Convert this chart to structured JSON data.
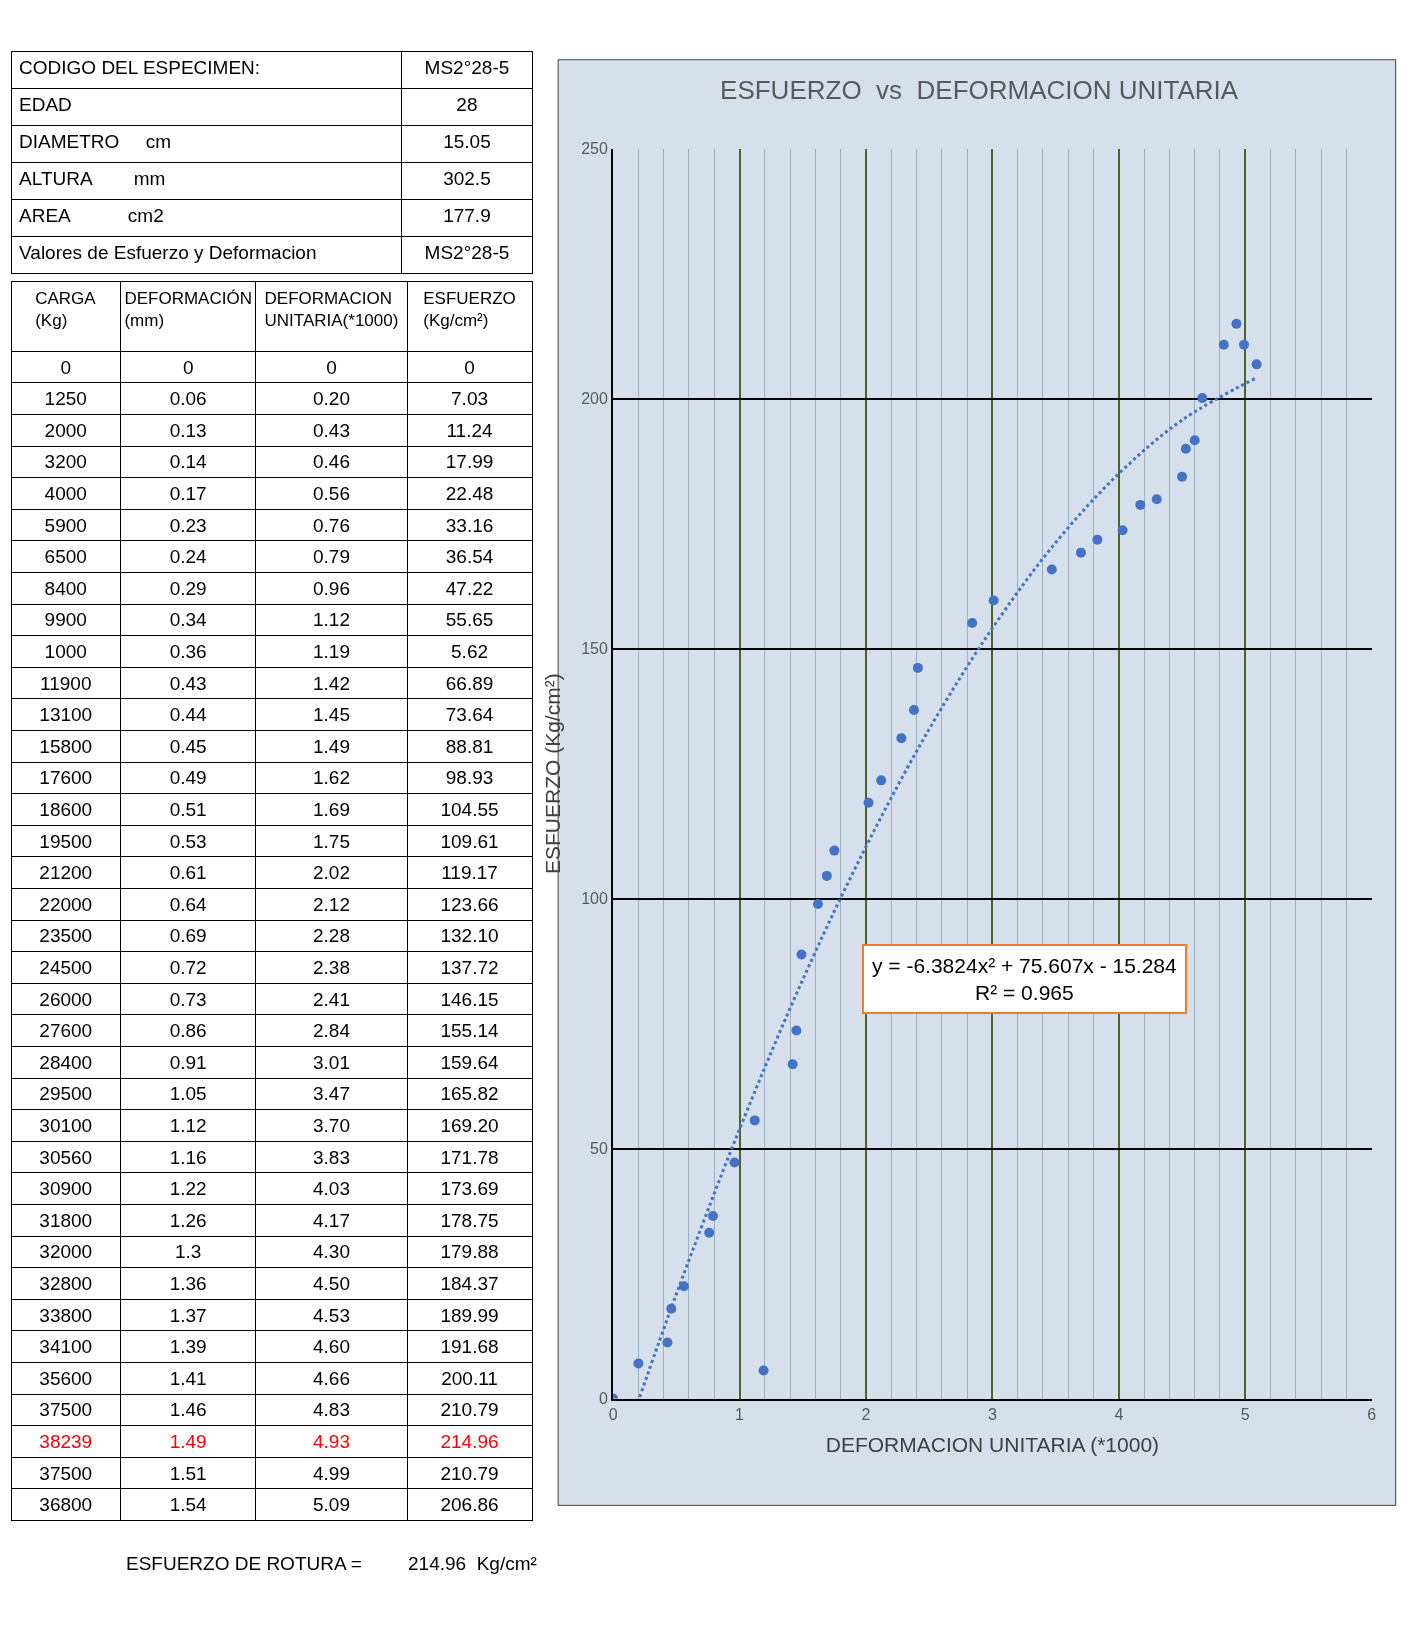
{
  "chart_data": [
    {
      "type": "other",
      "y_categories": [
        "CODIGO DEL ESPECIMEN:",
        "EDAD",
        "DIAMETRO     cm",
        "ALTURA        mm",
        "AREA           cm2",
        "Valores de Esfuerzo y Deformacion"
      ],
      "y2_categories": [
        "MS2°28-5",
        "28",
        "15.05",
        "302.5",
        "177.9",
        "MS2°28-5"
      ],
      "categories": [
        "CARGA (Kg)",
        "DEFORMACIÓN (mm)",
        "DEFORMACION UNITARIA(*1000)",
        "ESFUERZO (Kg/cm²)"
      ],
      "cells": [
        [
          "0",
          "0",
          "0",
          "0"
        ],
        [
          "1250",
          "0.06",
          "0.20",
          "7.03"
        ],
        [
          "2000",
          "0.13",
          "0.43",
          "11.24"
        ],
        [
          "3200",
          "0.14",
          "0.46",
          "17.99"
        ],
        [
          "4000",
          "0.17",
          "0.56",
          "22.48"
        ],
        [
          "5900",
          "0.23",
          "0.76",
          "33.16"
        ],
        [
          "6500",
          "0.24",
          "0.79",
          "36.54"
        ],
        [
          "8400",
          "0.29",
          "0.96",
          "47.22"
        ],
        [
          "9900",
          "0.34",
          "1.12",
          "55.65"
        ],
        [
          "1000",
          "0.36",
          "1.19",
          "5.62"
        ],
        [
          "11900",
          "0.43",
          "1.42",
          "66.89"
        ],
        [
          "13100",
          "0.44",
          "1.45",
          "73.64"
        ],
        [
          "15800",
          "0.45",
          "1.49",
          "88.81"
        ],
        [
          "17600",
          "0.49",
          "1.62",
          "98.93"
        ],
        [
          "18600",
          "0.51",
          "1.69",
          "104.55"
        ],
        [
          "19500",
          "0.53",
          "1.75",
          "109.61"
        ],
        [
          "21200",
          "0.61",
          "2.02",
          "119.17"
        ],
        [
          "22000",
          "0.64",
          "2.12",
          "123.66"
        ],
        [
          "23500",
          "0.69",
          "2.28",
          "132.10"
        ],
        [
          "24500",
          "0.72",
          "2.38",
          "137.72"
        ],
        [
          "26000",
          "0.73",
          "2.41",
          "146.15"
        ],
        [
          "27600",
          "0.86",
          "2.84",
          "155.14"
        ],
        [
          "28400",
          "0.91",
          "3.01",
          "159.64"
        ],
        [
          "29500",
          "1.05",
          "3.47",
          "165.82"
        ],
        [
          "30100",
          "1.12",
          "3.70",
          "169.20"
        ],
        [
          "30560",
          "1.16",
          "3.83",
          "171.78"
        ],
        [
          "30900",
          "1.22",
          "4.03",
          "173.69"
        ],
        [
          "31800",
          "1.26",
          "4.17",
          "178.75"
        ],
        [
          "32000",
          "1.3",
          "4.30",
          "179.88"
        ],
        [
          "32800",
          "1.36",
          "4.50",
          "184.37"
        ],
        [
          "33800",
          "1.37",
          "4.53",
          "189.99"
        ],
        [
          "34100",
          "1.39",
          "4.60",
          "191.68"
        ],
        [
          "35600",
          "1.41",
          "4.66",
          "200.11"
        ],
        [
          "37500",
          "1.46",
          "4.83",
          "210.79"
        ],
        [
          "38239",
          "1.49",
          "4.93",
          "214.96"
        ],
        [
          "37500",
          "1.51",
          "4.99",
          "210.79"
        ],
        [
          "36800",
          "1.54",
          "5.09",
          "206.86"
        ]
      ],
      "colors": [
        "#000000",
        "#000000",
        "#000000",
        "#000000",
        "#000000",
        "#000000",
        "#000000",
        "#000000",
        "#000000",
        "#000000",
        "#000000",
        "#000000",
        "#000000",
        "#000000",
        "#000000",
        "#000000",
        "#000000",
        "#000000",
        "#000000",
        "#000000",
        "#000000",
        "#000000",
        "#000000",
        "#000000",
        "#000000",
        "#000000",
        "#000000",
        "#000000",
        "#000000",
        "#000000",
        "#000000",
        "#000000",
        "#000000",
        "#000000",
        "#ff0000",
        "#000000",
        "#000000"
      ],
      "annotations": [
        "ESFUERZO DE ROTURA =",
        "214.96  Kg/cm²"
      ]
    },
    {
      "type": "scatter",
      "title": "ESFUERZO  vs  DEFORMACION UNITARIA",
      "xlabel": "DEFORMACION UNITARIA (*1000)",
      "ylabel": "ESFUERZO (Kg/cm²)",
      "xlim": [
        0,
        6
      ],
      "xticks": [
        0,
        1,
        2,
        3,
        4,
        5,
        6
      ],
      "ylim": [
        0,
        250
      ],
      "yticks": [
        0,
        50,
        100,
        150,
        200,
        250
      ],
      "grid": true,
      "series": [
        {
          "type": "scatter",
          "marker": "circle",
          "color": "#4472c4",
          "x": [
            0,
            0.2,
            0.43,
            0.46,
            0.56,
            0.76,
            0.79,
            0.96,
            1.12,
            1.19,
            1.42,
            1.45,
            1.49,
            1.62,
            1.69,
            1.75,
            2.02,
            2.12,
            2.28,
            2.38,
            2.41,
            2.84,
            3.01,
            3.47,
            3.7,
            3.83,
            4.03,
            4.17,
            4.3,
            4.5,
            4.53,
            4.6,
            4.66,
            4.83,
            4.93,
            4.99,
            5.09
          ],
          "values": [
            0,
            7.03,
            11.24,
            17.99,
            22.48,
            33.16,
            36.54,
            47.22,
            55.65,
            5.62,
            66.89,
            73.64,
            88.81,
            98.93,
            104.55,
            109.61,
            119.17,
            123.66,
            132.1,
            137.72,
            146.15,
            155.14,
            159.64,
            165.82,
            169.2,
            171.78,
            173.69,
            178.75,
            179.88,
            184.37,
            189.99,
            191.68,
            200.11,
            210.79,
            214.96,
            210.79,
            206.86
          ]
        },
        {
          "type": "line",
          "color": "#4472c4",
          "line_style": "dotted",
          "x": [
            0.21,
            0.5,
            1,
            1.5,
            2,
            2.5,
            3,
            3.5,
            4,
            4.5,
            5.09
          ],
          "values": [
            0.3,
            20.9,
            53.9,
            83.8,
            110.4,
            133.9,
            154.1,
            171.2,
            185.0,
            195.7,
            204.2
          ]
        }
      ],
      "annotations": [
        "y = -6.3824x² + 75.607x - 15.284",
        "R² = 0.965"
      ]
    }
  ]
}
